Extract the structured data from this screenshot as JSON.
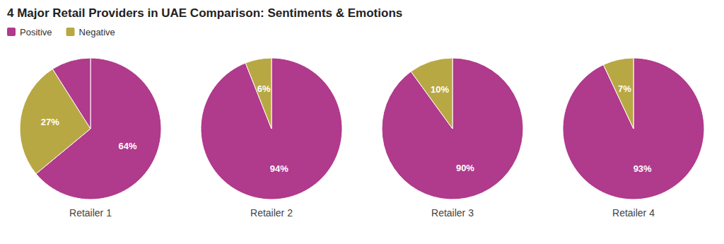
{
  "chart_data": {
    "type": "pie",
    "title": "4 Major Retail Providers in UAE Comparison: Sentiments & Emotions",
    "categories": [
      "Positive",
      "Negative",
      null
    ],
    "colors": [
      "#b03a8c",
      "#b8a844",
      "#b03a8c"
    ],
    "legend": "top",
    "data_labels": true,
    "series": [
      {
        "name": "Retailer 1",
        "values": [
          64,
          27,
          9
        ],
        "value_labels": [
          "64%",
          "27%",
          null
        ]
      },
      {
        "name": "Retailer 2",
        "values": [
          94,
          6,
          0
        ],
        "value_labels": [
          "94%",
          "6%",
          null
        ]
      },
      {
        "name": "Retailer 3",
        "values": [
          90,
          10,
          0
        ],
        "value_labels": [
          "90%",
          "10%",
          null
        ]
      },
      {
        "name": "Retailer 4",
        "values": [
          93,
          7,
          0
        ],
        "value_labels": [
          "93%",
          "7%",
          null
        ]
      }
    ]
  }
}
